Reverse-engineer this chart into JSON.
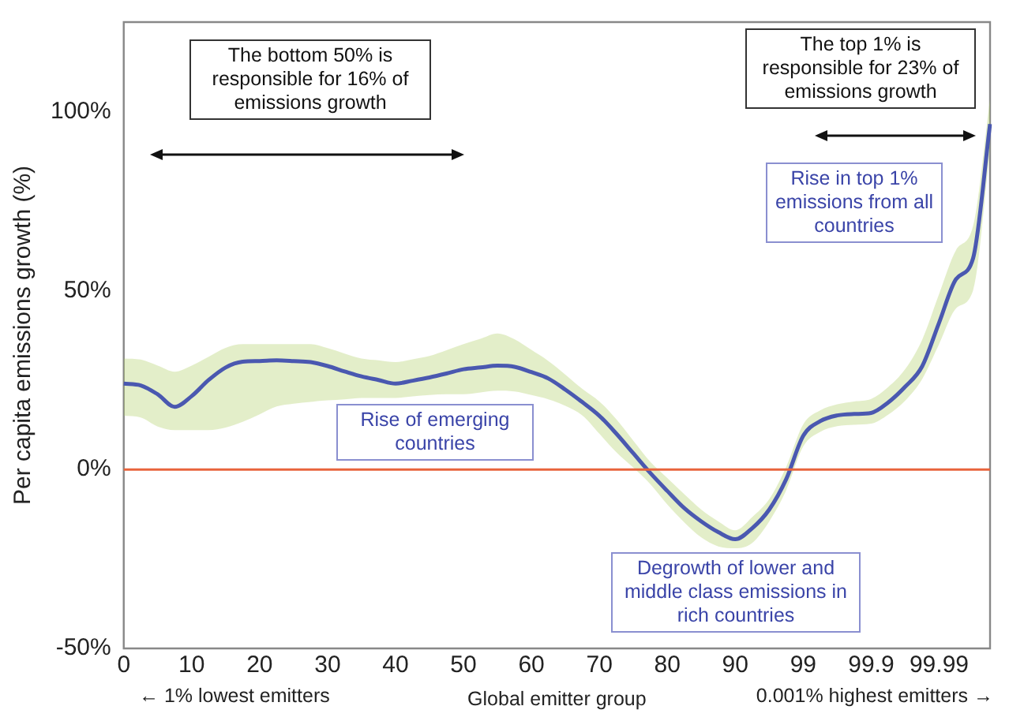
{
  "chart_data": {
    "type": "line",
    "ylabel": "Per capita emissions growth (%)",
    "xlabel": "Global emitter group",
    "categories": [
      "0",
      null,
      null,
      null,
      "10",
      null,
      null,
      null,
      "20",
      null,
      null,
      null,
      "30",
      null,
      null,
      null,
      "40",
      null,
      null,
      null,
      "50",
      null,
      null,
      null,
      "60",
      null,
      null,
      null,
      "70",
      null,
      null,
      null,
      "80",
      null,
      null,
      null,
      "90",
      null,
      null,
      null,
      "99",
      null,
      null,
      null,
      "99.9",
      null,
      null,
      null,
      "99.99",
      null,
      null,
      null
    ],
    "ylim": [
      -50,
      125
    ],
    "yticks": [
      {
        "value": -50,
        "label": "-50%"
      },
      {
        "value": 0,
        "label": "0%"
      },
      {
        "value": 50,
        "label": "50%"
      },
      {
        "value": 100,
        "label": "100%"
      }
    ],
    "grid": false,
    "legend": false,
    "marker": "none",
    "line_style": "solid",
    "series": [
      {
        "color": "#4a58b0",
        "values": [
          24,
          23.5,
          21,
          17.5,
          20.5,
          25,
          28.5,
          30.1,
          30.3,
          30.5,
          30.3,
          30,
          28.9,
          27.4,
          26,
          25,
          24,
          24.8,
          25.7,
          26.8,
          28,
          28.5,
          29,
          28.7,
          27.2,
          25.4,
          22.3,
          18.8,
          15,
          10,
          4.5,
          -1,
          -6,
          -10.8,
          -14.5,
          -17.5,
          -19.5,
          -16.4,
          -11.2,
          -2.7,
          9.4,
          13.5,
          15.1,
          15.5,
          15.8,
          18.7,
          23.1,
          28.8,
          41,
          53.2,
          59,
          96.5
        ],
        "lower": [
          15,
          14.5,
          12,
          11,
          11,
          11,
          11.7,
          13.3,
          15.4,
          17.6,
          18.4,
          18.9,
          19.3,
          19.6,
          20,
          20,
          20,
          20.4,
          20.8,
          21,
          21,
          21.5,
          22,
          21.8,
          20.8,
          19.6,
          17.8,
          15.1,
          10,
          4.8,
          0.5,
          -4.1,
          -9.8,
          -14.8,
          -19,
          -21.5,
          -22,
          -20.5,
          -14.5,
          -5.8,
          6.4,
          10.5,
          12.1,
          12.5,
          12.8,
          15.3,
          19.2,
          25.2,
          35,
          45,
          50,
          89.2
        ],
        "upper": [
          31,
          30.7,
          29,
          27.3,
          29,
          31.5,
          34,
          35,
          35,
          35,
          35,
          35,
          33.9,
          32.4,
          31,
          30.5,
          30,
          30.8,
          31.7,
          33.3,
          35,
          36.5,
          38,
          36.4,
          33.4,
          30.3,
          26.5,
          22.5,
          19,
          14,
          8,
          2.1,
          -2.4,
          -6.9,
          -11.2,
          -14.5,
          -17,
          -13.3,
          -8.3,
          0.7,
          12.6,
          16.5,
          18.2,
          19,
          19.7,
          23,
          28,
          36.2,
          49,
          61.3,
          68,
          103.5
        ]
      }
    ],
    "ref_lines": [
      {
        "axis": "y",
        "value": 0,
        "color": "#e8643c"
      }
    ],
    "annotations": [
      "The bottom 50% is responsible for 16% of emissions growth",
      "The top 1% is responsible for 23% of  emissions growth",
      "Rise in top 1% emissions from all countries",
      "Rise of emerging countries",
      "Degrowth of lower and middle class emissions in rich countries",
      "← 1% lowest emitters",
      "0.001% highest emitters →"
    ]
  }
}
